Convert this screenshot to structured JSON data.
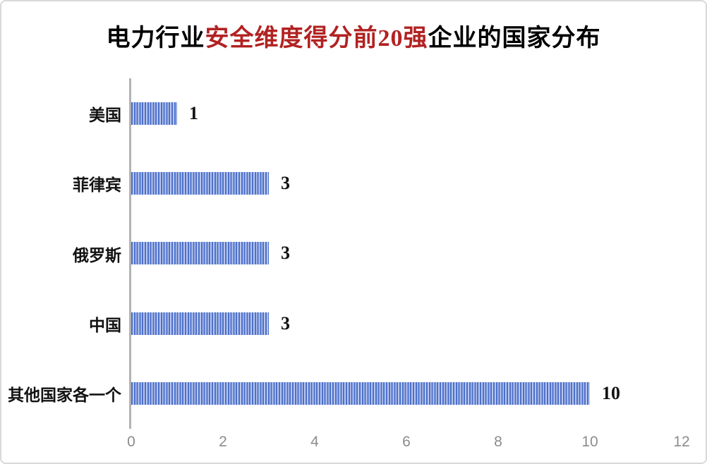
{
  "colors": {
    "background": "#ffffff",
    "frame_border": "#d9d9d9",
    "title_red": "#b22222",
    "title_black": "#000000",
    "bar_dark": "#4b70c8",
    "bar_light": "#b9c6ee",
    "axis_line": "#b3b3b3",
    "tick_text": "#8c8c8c"
  },
  "title": {
    "part1": "电力行业",
    "part2_red": "安全维度得分前20强",
    "part3": "企业的国家分布"
  },
  "chart_data": {
    "type": "bar",
    "orientation": "horizontal",
    "title": "电力行业安全维度得分前20强企业的国家分布",
    "categories": [
      "美国",
      "菲律宾",
      "俄罗斯",
      "中国",
      "其他国家各一个"
    ],
    "values": [
      1,
      3,
      3,
      3,
      10
    ],
    "data_labels": [
      "1",
      "3",
      "3",
      "3",
      "10"
    ],
    "xlabel": "",
    "ylabel": "",
    "xlim": [
      0,
      12
    ],
    "x_ticks": [
      "0",
      "2",
      "4",
      "6",
      "8",
      "10",
      "12"
    ],
    "grid": false,
    "legend": "none",
    "bar_pattern": "vertical-stripes"
  }
}
